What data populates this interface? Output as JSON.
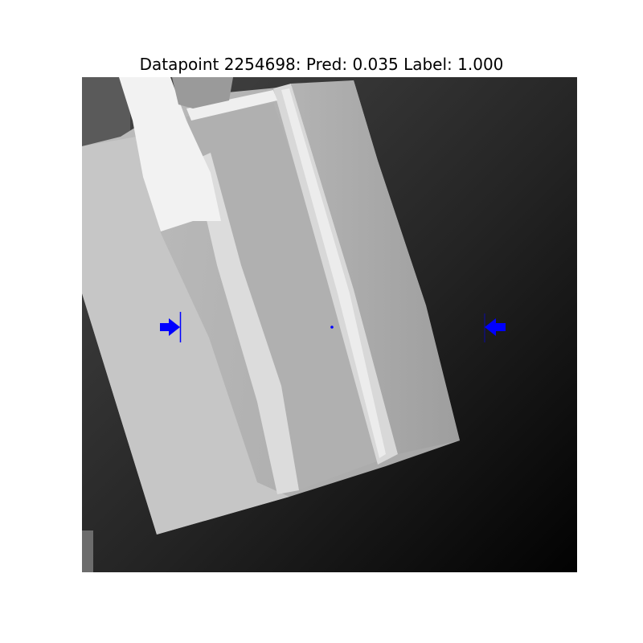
{
  "figure": {
    "title": "Datapoint 2254698: Pred: 0.035 Label: 1.000"
  },
  "grasp_markers": {
    "color": "#0000ff",
    "left_arrow_direction": "right",
    "right_arrow_direction": "left"
  },
  "scene": {
    "colormap": "gray",
    "description_objects": [
      "box",
      "background-gradient"
    ]
  }
}
